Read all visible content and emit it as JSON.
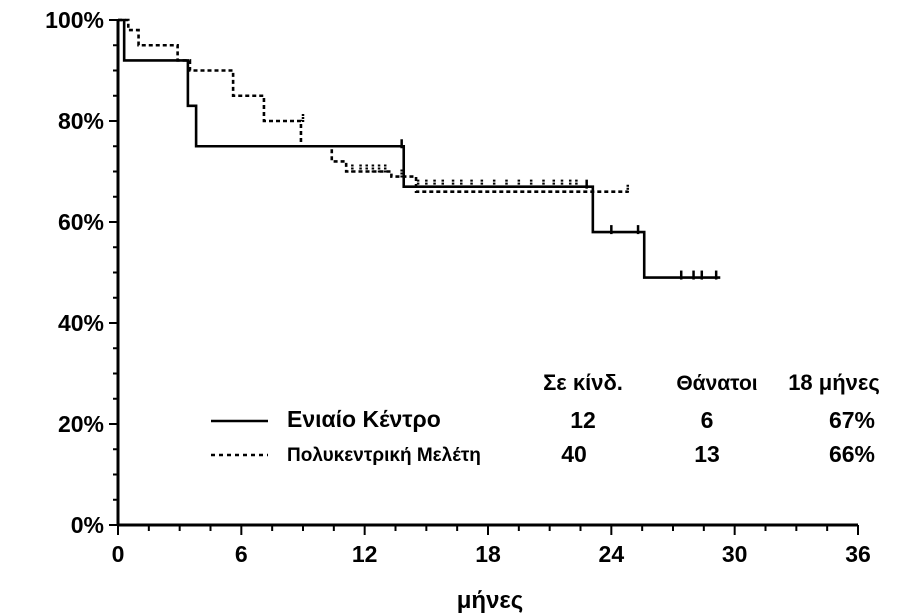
{
  "chart_data": {
    "type": "line",
    "subtype": "kaplan-meier-survival",
    "xlabel": "μήνες",
    "ylabel": "",
    "x_ticks": [
      "0",
      "6",
      "12",
      "18",
      "24",
      "30",
      "36"
    ],
    "y_ticks": [
      "0%",
      "20%",
      "40%",
      "60%",
      "80%",
      "100%"
    ],
    "xlim": [
      0,
      36
    ],
    "ylim": [
      0,
      100
    ],
    "grid": false,
    "series": [
      {
        "name": "Ενιαίο Κέντρο",
        "style": "solid",
        "color": "#000000",
        "steps": [
          [
            0,
            100
          ],
          [
            0.3,
            92
          ],
          [
            3.3,
            92
          ],
          [
            3.4,
            83
          ],
          [
            3.7,
            83
          ],
          [
            3.8,
            75
          ],
          [
            13.8,
            75
          ],
          [
            13.9,
            67
          ],
          [
            23.0,
            67
          ],
          [
            23.1,
            58
          ],
          [
            25.5,
            58
          ],
          [
            25.6,
            49
          ],
          [
            29.3,
            49
          ]
        ],
        "censored": [
          [
            13.8,
            75
          ],
          [
            22.8,
            67
          ],
          [
            24.0,
            58
          ],
          [
            25.3,
            58
          ],
          [
            27.4,
            49
          ],
          [
            28.0,
            49
          ],
          [
            28.4,
            49
          ],
          [
            29.1,
            49
          ]
        ]
      },
      {
        "name": "Πολυκεντρική Μελέτη",
        "style": "dotted",
        "color": "#000000",
        "steps": [
          [
            0,
            100
          ],
          [
            0.5,
            98
          ],
          [
            1.0,
            95
          ],
          [
            2.8,
            95
          ],
          [
            2.9,
            92
          ],
          [
            3.4,
            92
          ],
          [
            3.5,
            90
          ],
          [
            5.5,
            90
          ],
          [
            5.6,
            85
          ],
          [
            7.0,
            85
          ],
          [
            7.1,
            80
          ],
          [
            8.8,
            80
          ],
          [
            8.9,
            75
          ],
          [
            10.3,
            75
          ],
          [
            10.4,
            72
          ],
          [
            11.0,
            72
          ],
          [
            11.1,
            70
          ],
          [
            13.2,
            70
          ],
          [
            13.3,
            69
          ],
          [
            14.4,
            69
          ],
          [
            14.5,
            66
          ],
          [
            24.8,
            66
          ]
        ],
        "censored": [
          [
            9.0,
            80
          ],
          [
            11.4,
            70
          ],
          [
            11.8,
            70
          ],
          [
            12.1,
            70
          ],
          [
            12.4,
            70
          ],
          [
            12.7,
            70
          ],
          [
            13.0,
            70
          ],
          [
            13.8,
            69
          ],
          [
            14.6,
            67
          ],
          [
            15.0,
            67
          ],
          [
            15.4,
            67
          ],
          [
            15.8,
            67
          ],
          [
            16.3,
            67
          ],
          [
            16.7,
            67
          ],
          [
            17.2,
            67
          ],
          [
            17.7,
            67
          ],
          [
            18.3,
            67
          ],
          [
            18.9,
            67
          ],
          [
            19.5,
            67
          ],
          [
            20.1,
            67
          ],
          [
            20.7,
            67
          ],
          [
            21.2,
            67
          ],
          [
            21.6,
            67
          ],
          [
            22.0,
            67
          ],
          [
            22.3,
            67
          ],
          [
            24.8,
            66
          ]
        ]
      }
    ],
    "table": {
      "headers": [
        "Σε κίνδ.",
        "Θάνατοι",
        "18 μήνες"
      ],
      "rows": [
        {
          "label": "Ενιαίο Κέντρο",
          "at_risk": "12",
          "deaths": "6",
          "at18": "67%"
        },
        {
          "label": "Πολυκεντρική Μελέτη",
          "at_risk": "40",
          "deaths": "13",
          "at18": "66%"
        }
      ]
    }
  }
}
